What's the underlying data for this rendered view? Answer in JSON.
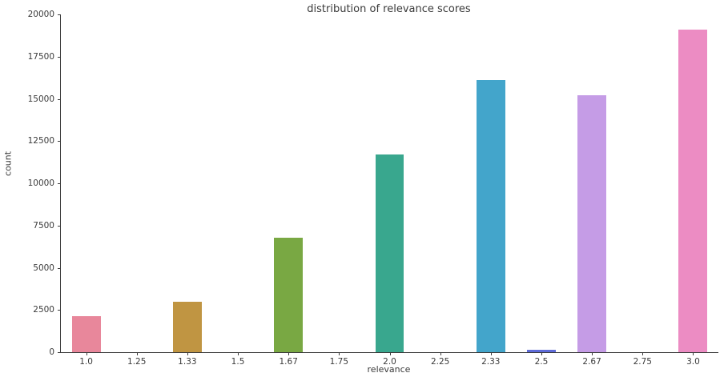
{
  "chart_data": {
    "type": "bar",
    "title": "distribution of relevance scores",
    "xlabel": "relevance",
    "ylabel": "count",
    "categories": [
      "1.0",
      "1.25",
      "1.33",
      "1.5",
      "1.67",
      "1.75",
      "2.0",
      "2.25",
      "2.33",
      "2.5",
      "2.67",
      "2.75",
      "3.0"
    ],
    "values": [
      2150,
      0,
      3000,
      0,
      6800,
      0,
      11700,
      0,
      16100,
      120,
      15200,
      0,
      19100
    ],
    "bar_colors": [
      "#e8879b",
      null,
      "#c09542",
      null,
      "#79a843",
      null,
      "#39a78e",
      null,
      "#43a5cb",
      "#5e6bd8",
      "#c59ce6",
      null,
      "#ec8cc3"
    ],
    "yticks": [
      0,
      2500,
      5000,
      7500,
      10000,
      12500,
      15000,
      17500,
      20000
    ],
    "ylim": [
      0,
      20000
    ],
    "grid": false,
    "legend": "none",
    "background_color": "#ffffff",
    "axis_color": "#3a3a3a"
  }
}
